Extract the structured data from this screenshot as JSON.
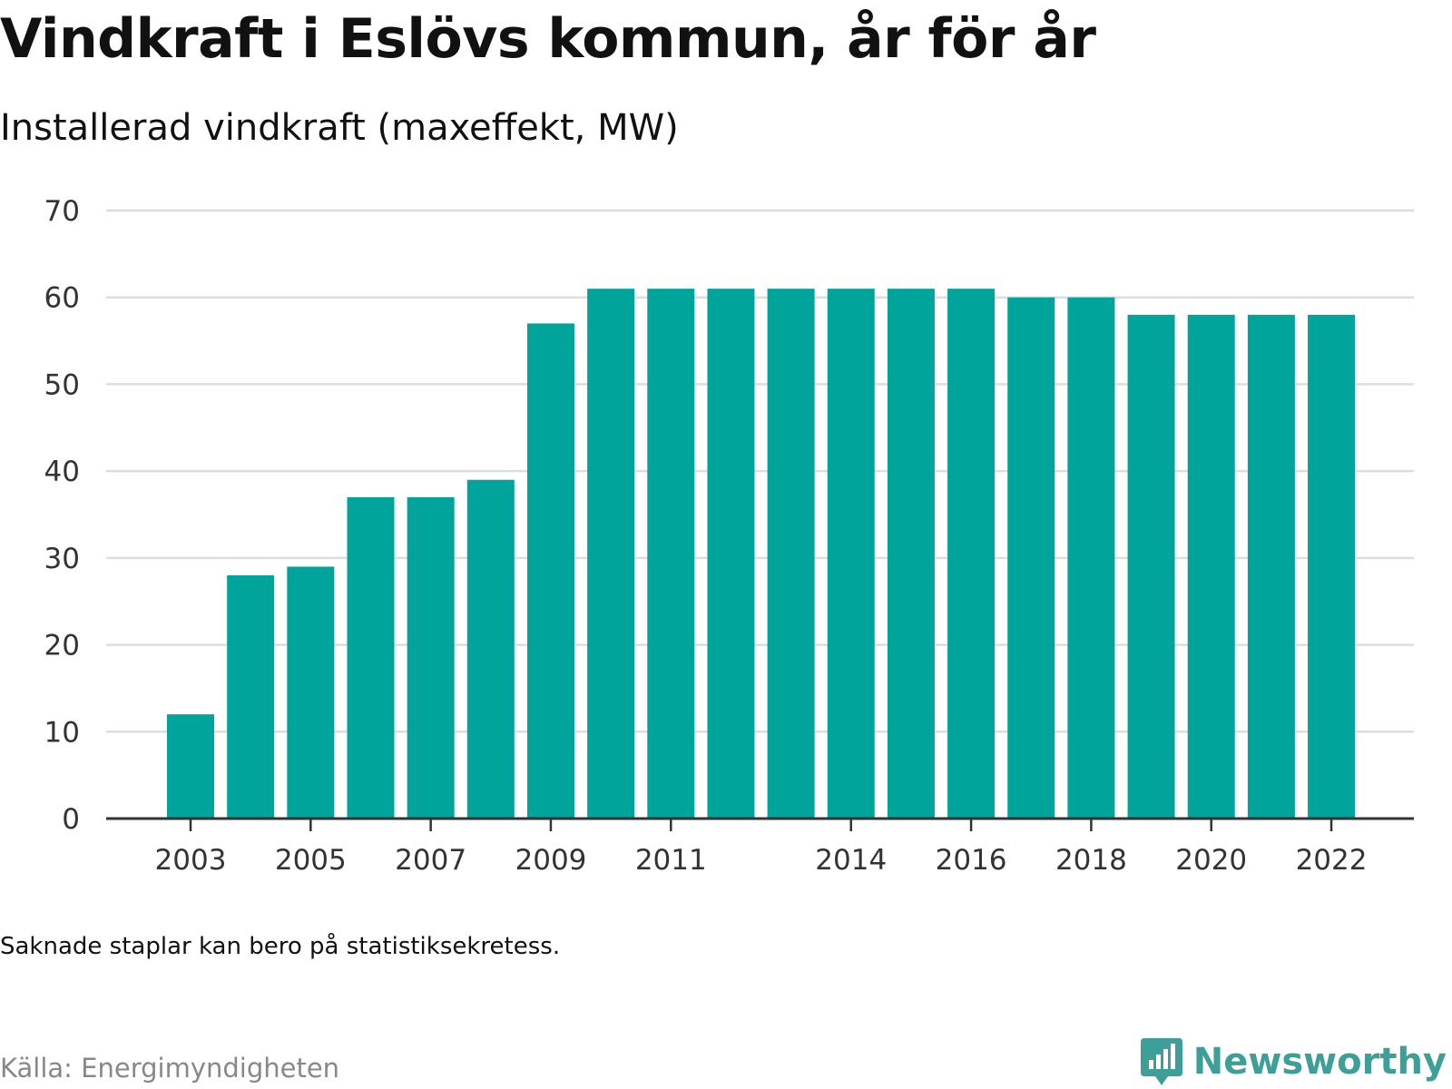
{
  "header": {
    "title": "Vindkraft i Eslövs kommun, år för år",
    "subtitle": "Installerad vindkraft (maxeffekt, MW)"
  },
  "footer": {
    "note": "Saknade staplar kan bero på statistiksekretess.",
    "source": "Källa: Energimyndigheten",
    "brand": "Newsworthy",
    "brand_icon": "bar-chart-speech-bubble-icon"
  },
  "colors": {
    "bar": "#00a49b",
    "grid": "#dddddd",
    "axis": "#333333",
    "brand": "#3d9f97"
  },
  "chart_data": {
    "type": "bar",
    "categories": [
      "2003",
      "2004",
      "2005",
      "2006",
      "2007",
      "2008",
      "2009",
      "2010",
      "2011",
      "2012",
      "2013",
      "2014",
      "2015",
      "2016",
      "2017",
      "2018",
      "2019",
      "2020",
      "2021",
      "2022"
    ],
    "values": [
      12,
      28,
      29,
      37,
      37,
      39,
      57,
      61,
      61,
      61,
      61,
      61,
      61,
      61,
      60,
      60,
      58,
      58,
      58,
      58
    ],
    "x_tick_labels": [
      "2003",
      "2005",
      "2007",
      "2009",
      "2011",
      "2014",
      "2016",
      "2018",
      "2020",
      "2022"
    ],
    "y_ticks": [
      0,
      10,
      20,
      30,
      40,
      50,
      60,
      70
    ],
    "ylim": [
      0,
      70
    ],
    "title": "Vindkraft i Eslövs kommun, år för år",
    "subtitle": "Installerad vindkraft (maxeffekt, MW)",
    "grid": true,
    "legend": "none"
  }
}
